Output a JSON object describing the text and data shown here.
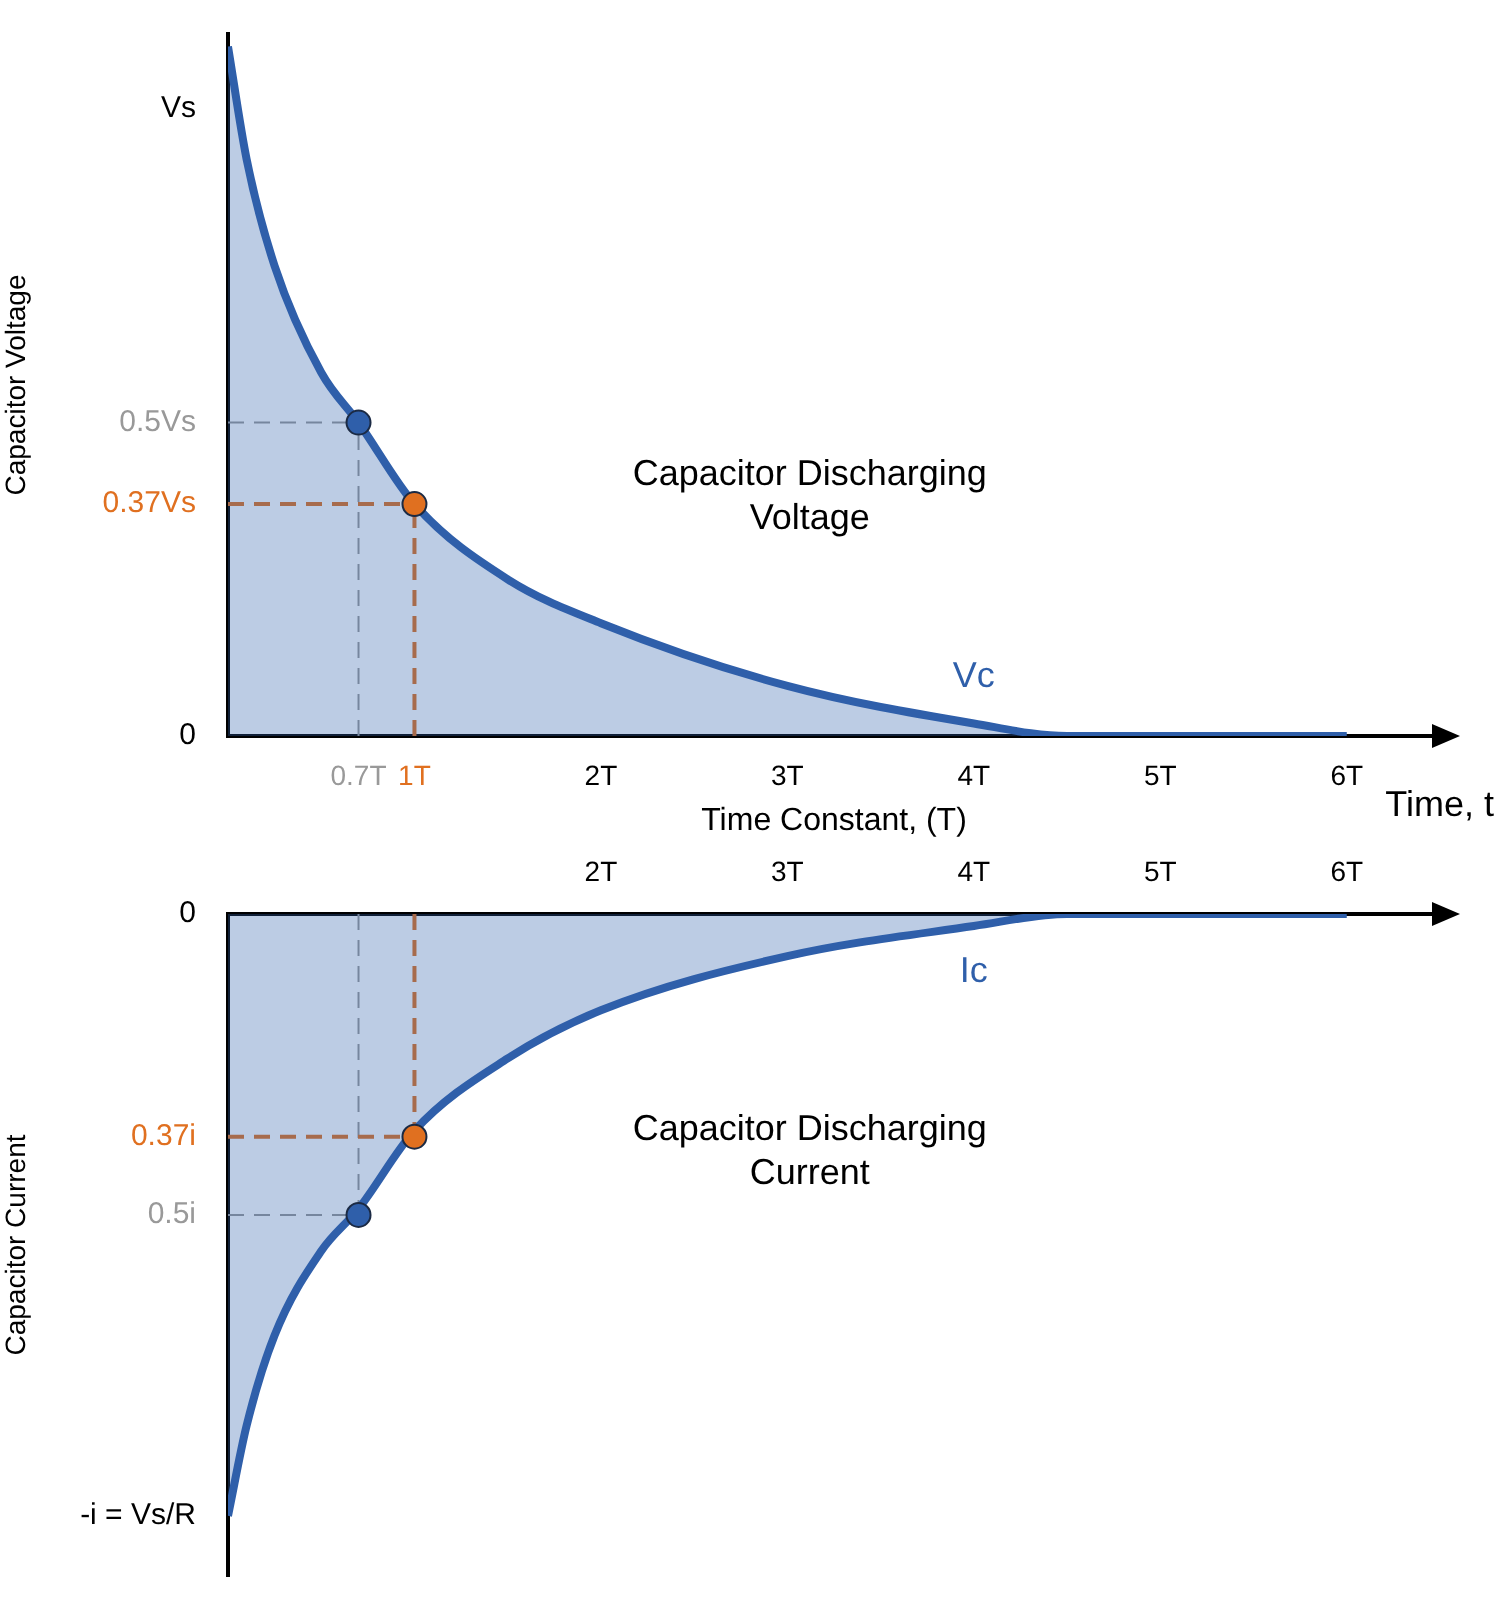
{
  "chart_data": [
    {
      "type": "area",
      "ylabel": "Capacitor Voltage",
      "xlabel": "Time Constant, (T)",
      "xlim": [
        0,
        6.5
      ],
      "ylim": [
        0,
        1.12
      ],
      "xticks": [
        {
          "value": 0.7,
          "label": "0.7T"
        },
        {
          "value": 1,
          "label": "1T"
        },
        {
          "value": 2,
          "label": "2T"
        },
        {
          "value": 3,
          "label": "3T"
        },
        {
          "value": 4,
          "label": "4T"
        },
        {
          "value": 5,
          "label": "5T"
        },
        {
          "value": 6,
          "label": "6T"
        }
      ],
      "yticks": [
        0,
        {
          "value": 0.37,
          "label": "0.37Vs"
        },
        {
          "value": 0.5,
          "label": "0.5Vs"
        },
        {
          "value": 1,
          "label": "Vs"
        }
      ],
      "series": [
        {
          "name": "Vc",
          "color": "#2f5faa",
          "x": [
            0,
            0.1,
            0.25,
            0.5,
            0.7,
            1,
            1.5,
            2,
            3,
            4,
            4.5,
            5,
            6
          ],
          "values": [
            1.1,
            0.92,
            0.75,
            0.58,
            0.5,
            0.37,
            0.25,
            0.18,
            0.08,
            0.02,
            0,
            0,
            0
          ]
        },
        {
          "type": "scatter",
          "marker": "circle",
          "x": [
            0.7,
            1
          ],
          "values": [
            0.5,
            0.37
          ],
          "colors": [
            "#2f5faa",
            "#e07020"
          ]
        }
      ],
      "ref_lines": [
        {
          "axis": "x",
          "value": 0.7,
          "color": "#999999",
          "line_style": "dashed"
        },
        {
          "axis": "y",
          "value": 0.5,
          "color": "#999999",
          "line_style": "dashed"
        },
        {
          "axis": "x",
          "value": 1,
          "color": "#e07020",
          "line_style": "dashed"
        },
        {
          "axis": "y",
          "value": 0.37,
          "color": "#e07020",
          "line_style": "dashed"
        }
      ],
      "annotations": [
        "Capacitor Discharging Voltage",
        "Time, t"
      ],
      "grid": false,
      "legend": false
    },
    {
      "type": "area",
      "ylabel": "Capacitor Current",
      "xlim": [
        0,
        6.5
      ],
      "ylim": [
        -1.1,
        0
      ],
      "xticks": [
        {
          "value": 2,
          "label": "2T"
        },
        {
          "value": 3,
          "label": "3T"
        },
        {
          "value": 4,
          "label": "4T"
        },
        {
          "value": 5,
          "label": "5T"
        },
        {
          "value": 6,
          "label": "6T"
        }
      ],
      "yticks": [
        0,
        {
          "value": -0.37,
          "label": "0.37i"
        },
        {
          "value": -0.5,
          "label": "0.5i"
        },
        {
          "value": -1,
          "label": "-i = Vs/R"
        }
      ],
      "series": [
        {
          "name": "Ic",
          "color": "#2f5faa",
          "x": [
            0,
            0.1,
            0.25,
            0.5,
            0.7,
            1,
            1.5,
            2,
            3,
            4,
            4.5,
            5,
            6
          ],
          "values": [
            -1,
            -0.85,
            -0.7,
            -0.56,
            -0.49,
            -0.36,
            -0.24,
            -0.16,
            -0.07,
            -0.02,
            0,
            0,
            0
          ]
        },
        {
          "type": "scatter",
          "marker": "circle",
          "x": [
            0.7,
            1
          ],
          "values": [
            -0.5,
            -0.37
          ],
          "colors": [
            "#2f5faa",
            "#e07020"
          ]
        }
      ],
      "ref_lines": [
        {
          "axis": "x",
          "value": 0.7,
          "color": "#999999",
          "line_style": "dashed"
        },
        {
          "axis": "y",
          "value": -0.5,
          "color": "#999999",
          "line_style": "dashed"
        },
        {
          "axis": "x",
          "value": 1,
          "color": "#e07020",
          "line_style": "dashed"
        },
        {
          "axis": "y",
          "value": -0.37,
          "color": "#e07020",
          "line_style": "dashed"
        }
      ],
      "annotations": [
        "Capacitor Discharging Current"
      ],
      "grid": false,
      "legend": false
    }
  ]
}
